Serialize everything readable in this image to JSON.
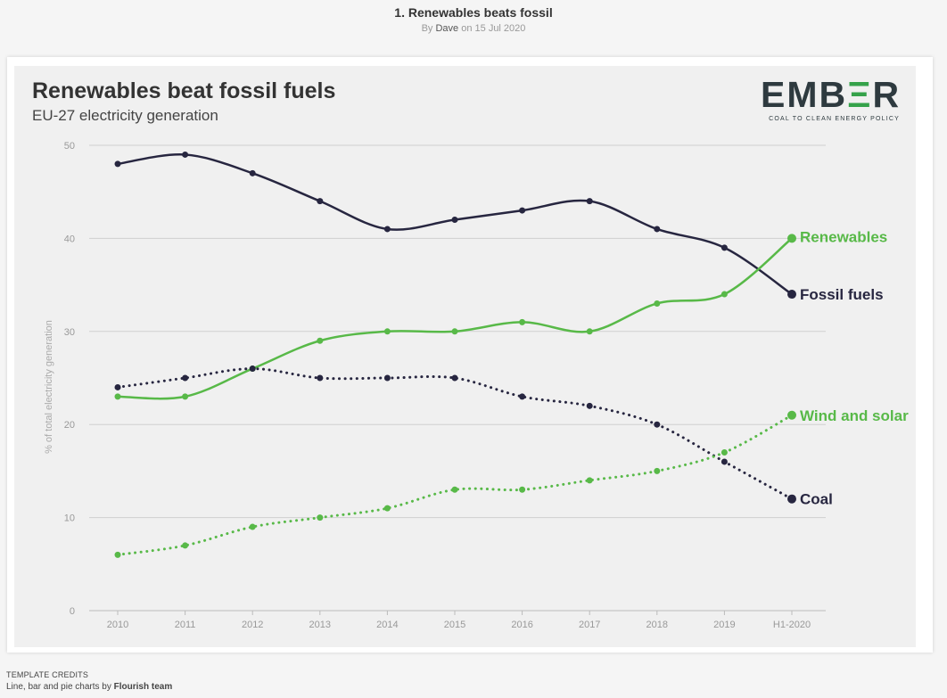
{
  "story": {
    "title": "1. Renewables beats fossil",
    "by_prefix": "By",
    "author": "Dave",
    "date_text": "on 15 Jul 2020"
  },
  "logo": {
    "word_part1": "EMB",
    "word_part2": "Ξ",
    "word_part3": "R",
    "tagline": "COAL TO CLEAN ENERGY POLICY"
  },
  "credits": {
    "heading": "TEMPLATE CREDITS",
    "line_prefix": "Line, bar and pie charts by",
    "author": "Flourish team"
  },
  "chart_data": {
    "type": "line",
    "title": "Renewables beat fossil fuels",
    "subtitle": "EU-27 electricity generation",
    "ylabel": "% of total electricity generation",
    "xlabel": "",
    "categories": [
      "2010",
      "2011",
      "2012",
      "2013",
      "2014",
      "2015",
      "2016",
      "2017",
      "2018",
      "2019",
      "H1-2020"
    ],
    "ylim": [
      0,
      50
    ],
    "yticks": [
      0,
      10,
      20,
      30,
      40,
      50
    ],
    "grid": true,
    "legend": "direct labels at line ends",
    "series": [
      {
        "name": "Fossil fuels",
        "color": "#272640",
        "dashed": false,
        "values": [
          48,
          49,
          47,
          44,
          41,
          42,
          43,
          44,
          41,
          39,
          34
        ]
      },
      {
        "name": "Renewables",
        "color": "#58b948",
        "dashed": false,
        "values": [
          23,
          23,
          26,
          29,
          30,
          30,
          31,
          30,
          33,
          34,
          40
        ]
      },
      {
        "name": "Coal",
        "color": "#272640",
        "dashed": true,
        "values": [
          24,
          25,
          26,
          25,
          25,
          25,
          23,
          22,
          20,
          16,
          12
        ]
      },
      {
        "name": "Wind and solar",
        "color": "#58b948",
        "dashed": true,
        "values": [
          6,
          7,
          9,
          10,
          11,
          13,
          13,
          14,
          15,
          17,
          21
        ]
      }
    ]
  }
}
